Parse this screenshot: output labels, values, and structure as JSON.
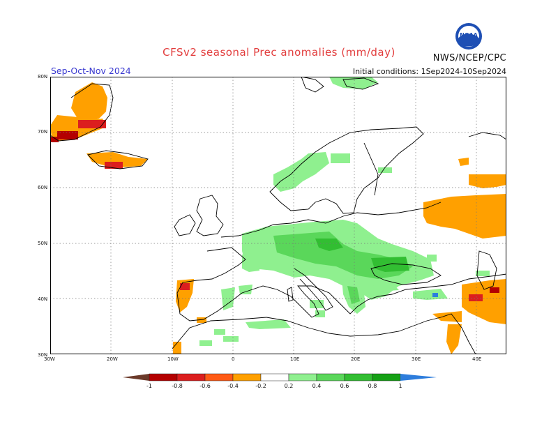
{
  "header": {
    "title": "CFSv2 seasonal Prec anomalies (mm/day)",
    "agency": "NWS/NCEP/CPC",
    "period": "Sep-Oct-Nov 2024",
    "initial_conditions": "Initial conditions: 1Sep2024-10Sep2024",
    "logo_text": "NOAA"
  },
  "map": {
    "lon_labels": [
      "30W",
      "20W",
      "10W",
      "0",
      "10E",
      "20E",
      "30E",
      "40E"
    ],
    "lat_labels": [
      "30N",
      "40N",
      "50N",
      "60N",
      "70N",
      "80N"
    ],
    "gridlines": "dotted"
  },
  "colorbar": {
    "labels": [
      "-1",
      "-0.8",
      "-0.6",
      "-0.4",
      "-0.2",
      "0.2",
      "0.4",
      "0.6",
      "0.8",
      "1"
    ],
    "colors": {
      "below_min": "#6b3a2a",
      "lt_-0.8": "#b40000",
      "-0.8_-0.6": "#dc1e1e",
      "-0.6_-0.4": "#ff5a14",
      "-0.4_-0.2": "#ffa000",
      "neutral": "#ffffff",
      "0.2_0.4": "#8ff08f",
      "0.4_0.6": "#5ad75a",
      "0.6_0.8": "#32be32",
      "0.8_1": "#14a014",
      "above_max": "#2d7ddc"
    }
  }
}
